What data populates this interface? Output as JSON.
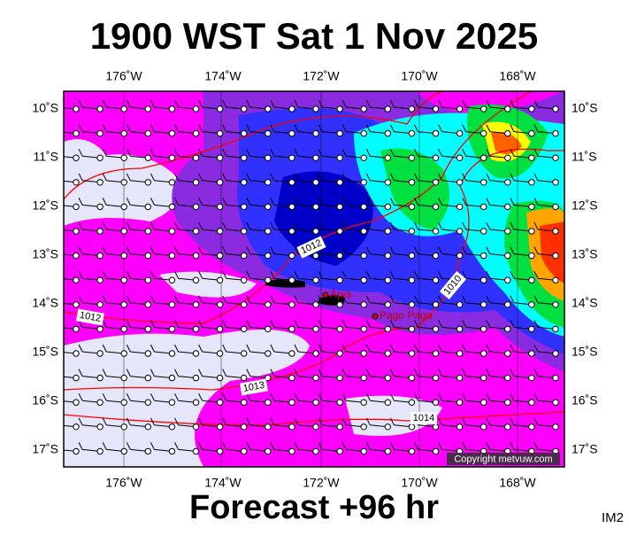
{
  "title": "1900 WST Sat 1 Nov 2025",
  "footer": "Forecast +96 hr",
  "corner_label": "IM2",
  "lon_labels": [
    "176˚W",
    "174˚W",
    "172˚W",
    "170˚W",
    "168˚W"
  ],
  "lat_labels": [
    "10˚S",
    "11˚S",
    "12˚S",
    "13˚S",
    "14˚S",
    "15˚S",
    "16˚S",
    "17˚S"
  ],
  "isobar_labels": [
    "1012",
    "1012",
    "1013",
    "1014",
    "1010"
  ],
  "places": [
    "Apia",
    "Pago Pago"
  ],
  "copyright": "Copyright metvuw.com"
}
